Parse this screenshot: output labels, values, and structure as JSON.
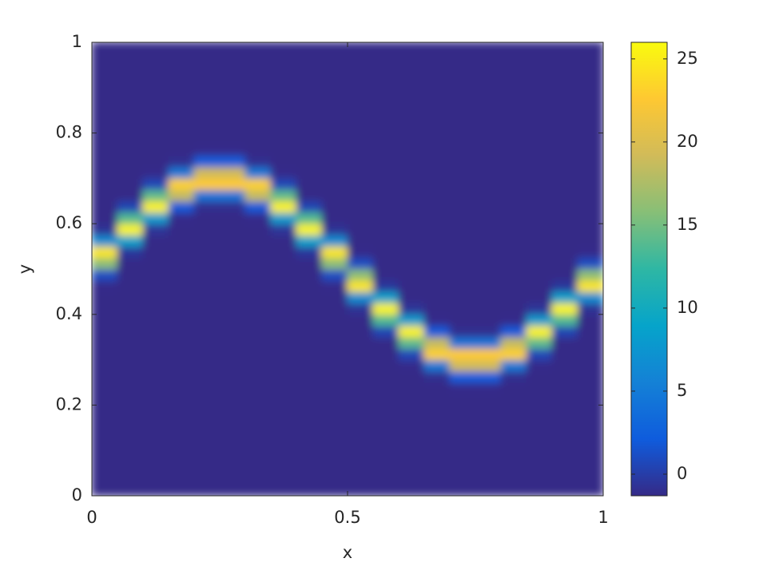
{
  "chart_data": {
    "type": "heatmap",
    "xlabel": "x",
    "ylabel": "y",
    "x": [
      0.025,
      0.075,
      0.125,
      0.175,
      0.225,
      0.275,
      0.325,
      0.375,
      0.425,
      0.475,
      0.525,
      0.575,
      0.625,
      0.675,
      0.725,
      0.775,
      0.825,
      0.875,
      0.925,
      0.975
    ],
    "y": [
      0.0125,
      0.0375,
      0.0625,
      0.0875,
      0.1125,
      0.1375,
      0.1625,
      0.1875,
      0.2125,
      0.2375,
      0.2625,
      0.2875,
      0.3125,
      0.3375,
      0.3625,
      0.3875,
      0.4125,
      0.4375,
      0.4625,
      0.4875,
      0.5125,
      0.5375,
      0.5625,
      0.5875,
      0.6125,
      0.6375,
      0.6625,
      0.6875,
      0.7125,
      0.7375,
      0.7625,
      0.7875,
      0.8125,
      0.8375,
      0.8625,
      0.8875,
      0.9125,
      0.9375,
      0.9625,
      0.9875
    ],
    "values": [
      [
        -1.3,
        -1.3,
        -1.3,
        -1.3,
        -1.3,
        -1.3,
        -1.3,
        -1.3,
        -1.3,
        -1.3,
        -1.3,
        -1.3,
        -1.3,
        -1.3,
        -1.3,
        -1.3,
        -1.3,
        -1.3,
        -1.3,
        -1.3
      ],
      [
        -1.3,
        -1.3,
        -1.3,
        -1.3,
        -1.3,
        -1.3,
        -1.3,
        -1.3,
        -1.3,
        -1.3,
        -1.3,
        -1.3,
        -1.3,
        -1.3,
        -1.3,
        -1.3,
        -1.3,
        -1.3,
        -1.3,
        -1.3
      ],
      [
        -1.3,
        -1.3,
        -1.3,
        -1.3,
        -1.3,
        -1.3,
        -1.3,
        -1.3,
        -1.3,
        -1.3,
        -1.3,
        -1.3,
        -1.3,
        -1.3,
        -1.3,
        -1.3,
        -1.3,
        -1.3,
        -1.3,
        -1.3
      ],
      [
        -1.3,
        -1.3,
        -1.3,
        -1.3,
        -1.3,
        -1.3,
        -1.3,
        -1.3,
        -1.3,
        -1.3,
        -1.3,
        -1.3,
        -1.3,
        -1.3,
        -1.3,
        -1.3,
        -1.3,
        -1.3,
        -1.3,
        -1.3
      ],
      [
        -1.3,
        -1.3,
        -1.3,
        -1.3,
        -1.3,
        -1.3,
        -1.3,
        -1.3,
        -1.3,
        -1.3,
        -1.3,
        -1.3,
        -1.3,
        -1.3,
        -1.3,
        -1.3,
        -1.3,
        -1.3,
        -1.3,
        -1.3
      ],
      [
        -1.3,
        -1.3,
        -1.3,
        -1.3,
        -1.3,
        -1.3,
        -1.3,
        -1.3,
        -1.3,
        -1.3,
        -1.3,
        -1.3,
        -1.3,
        -1.3,
        -1.3,
        -1.3,
        -1.3,
        -1.3,
        -1.3,
        -1.3
      ],
      [
        -1.3,
        -1.3,
        -1.3,
        -1.3,
        -1.3,
        -1.3,
        -1.3,
        -1.3,
        -1.3,
        -1.3,
        -1.3,
        -1.3,
        -1.3,
        -1.3,
        -1.3,
        -1.3,
        -1.3,
        -1.3,
        -1.3,
        -1.3
      ],
      [
        -1.3,
        -1.3,
        -1.3,
        -1.3,
        -1.3,
        -1.3,
        -1.3,
        -1.3,
        -1.3,
        -1.3,
        -1.3,
        -1.3,
        -1.3,
        -1.3,
        -1.3,
        -1.3,
        -1.3,
        -1.3,
        -1.3,
        -1.3
      ],
      [
        -1.3,
        -1.3,
        -1.3,
        -1.3,
        -1.3,
        -1.3,
        -1.3,
        -1.3,
        -1.3,
        -1.3,
        -1.3,
        -1.3,
        -1.3,
        -1.3,
        -1.3,
        -1.3,
        -1.3,
        -1.3,
        -1.3,
        -1.3
      ],
      [
        -1.3,
        -1.3,
        -1.3,
        -1.3,
        -1.3,
        -1.3,
        -1.3,
        -1.3,
        -1.3,
        -1.3,
        -1.3,
        -1.3,
        -1.3,
        -1.3,
        -1.2,
        -1.2,
        -1.3,
        -1.3,
        -1.3,
        -1.3
      ],
      [
        -1.3,
        -1.3,
        -1.3,
        -1.3,
        -1.3,
        -1.3,
        -1.3,
        -1.3,
        -1.3,
        -1.3,
        -1.3,
        -1.3,
        -1.3,
        -1.0,
        2.2,
        2.2,
        -1.0,
        -1.3,
        -1.3,
        -1.3
      ],
      [
        -1.3,
        -1.3,
        -1.3,
        -1.3,
        -1.3,
        -1.3,
        -1.3,
        -1.3,
        -1.3,
        -1.3,
        -1.3,
        -1.3,
        -1.2,
        4.8,
        19.2,
        19.2,
        4.8,
        -1.2,
        -1.3,
        -1.3
      ],
      [
        -1.3,
        -1.3,
        -1.3,
        -1.3,
        -1.3,
        -1.3,
        -1.3,
        -1.3,
        -1.3,
        -1.3,
        -1.3,
        -1.3,
        0.6,
        23.1,
        22.7,
        22.7,
        23.1,
        0.6,
        -1.3,
        -1.3
      ],
      [
        -1.3,
        -1.3,
        -1.3,
        -1.3,
        -1.3,
        -1.3,
        -1.3,
        -1.3,
        -1.3,
        -1.3,
        -1.3,
        -1.3,
        14.2,
        18.6,
        4.4,
        4.4,
        18.6,
        14.2,
        -1.3,
        -1.3
      ],
      [
        -1.3,
        -1.3,
        -1.3,
        -1.3,
        -1.3,
        -1.3,
        -1.3,
        -1.3,
        -1.3,
        -1.3,
        -1.3,
        0.5,
        25.4,
        2.0,
        -1.0,
        -1.0,
        2.0,
        25.4,
        0.5,
        -1.3
      ],
      [
        -1.3,
        -1.3,
        -1.3,
        -1.3,
        -1.3,
        -1.3,
        -1.3,
        -1.3,
        -1.3,
        -1.3,
        -1.3,
        13.7,
        8.2,
        -1.2,
        -1.3,
        -1.3,
        -1.2,
        8.2,
        13.7,
        -1.3
      ],
      [
        -1.3,
        -1.3,
        -1.3,
        -1.3,
        -1.3,
        -1.3,
        -1.3,
        -1.3,
        -1.3,
        -1.3,
        -0.8,
        25.5,
        -0.6,
        -1.3,
        -1.3,
        -1.3,
        -1.3,
        -0.6,
        25.5,
        -0.8
      ],
      [
        -1.3,
        -1.3,
        -1.3,
        -1.3,
        -1.3,
        -1.3,
        -1.3,
        -1.3,
        -1.3,
        -1.3,
        6.7,
        8.6,
        -1.3,
        -1.3,
        -1.3,
        -1.3,
        -1.3,
        -1.3,
        8.6,
        6.7
      ],
      [
        -1.2,
        -1.3,
        -1.3,
        -1.3,
        -1.3,
        -1.3,
        -1.3,
        -1.3,
        -1.3,
        -1.2,
        24.6,
        -0.5,
        -1.3,
        -1.3,
        -1.3,
        -1.3,
        -1.3,
        -1.3,
        -0.5,
        24.6
      ],
      [
        1.1,
        -1.3,
        -1.3,
        -1.3,
        -1.3,
        -1.3,
        -1.3,
        -1.3,
        -1.3,
        1.1,
        16.1,
        -1.3,
        -1.3,
        -1.3,
        -1.3,
        -1.3,
        -1.3,
        -1.3,
        -1.3,
        16.1
      ],
      [
        16.1,
        -1.3,
        -1.3,
        -1.3,
        -1.3,
        -1.3,
        -1.3,
        -1.3,
        -1.3,
        16.1,
        1.1,
        -1.3,
        -1.3,
        -1.3,
        -1.3,
        -1.3,
        -1.3,
        -1.3,
        -1.3,
        1.1
      ],
      [
        24.6,
        -0.5,
        -1.3,
        -1.3,
        -1.3,
        -1.3,
        -1.3,
        -1.3,
        -0.5,
        24.6,
        -1.2,
        -1.3,
        -1.3,
        -1.3,
        -1.3,
        -1.3,
        -1.3,
        -1.3,
        -1.3,
        -1.2
      ],
      [
        6.7,
        8.6,
        -1.3,
        -1.3,
        -1.3,
        -1.3,
        -1.3,
        -1.3,
        8.6,
        6.7,
        -1.3,
        -1.3,
        -1.3,
        -1.3,
        -1.3,
        -1.3,
        -1.3,
        -1.3,
        -1.3,
        -1.3
      ],
      [
        -0.8,
        25.5,
        -0.6,
        -1.3,
        -1.3,
        -1.3,
        -1.3,
        -0.6,
        25.5,
        -0.8,
        -1.3,
        -1.3,
        -1.3,
        -1.3,
        -1.3,
        -1.3,
        -1.3,
        -1.3,
        -1.3,
        -1.3
      ],
      [
        -1.3,
        13.7,
        8.2,
        -1.2,
        -1.3,
        -1.3,
        -1.2,
        8.2,
        13.7,
        -1.3,
        -1.3,
        -1.3,
        -1.3,
        -1.3,
        -1.3,
        -1.3,
        -1.3,
        -1.3,
        -1.3,
        -1.3
      ],
      [
        -1.3,
        0.5,
        25.4,
        2.0,
        -1.0,
        -1.0,
        2.0,
        25.4,
        0.5,
        -1.3,
        -1.3,
        -1.3,
        -1.3,
        -1.3,
        -1.3,
        -1.3,
        -1.3,
        -1.3,
        -1.3,
        -1.3
      ],
      [
        -1.3,
        -1.3,
        14.2,
        18.6,
        4.4,
        4.4,
        18.6,
        14.2,
        -1.3,
        -1.3,
        -1.3,
        -1.3,
        -1.3,
        -1.3,
        -1.3,
        -1.3,
        -1.3,
        -1.3,
        -1.3,
        -1.3
      ],
      [
        -1.3,
        -1.3,
        0.6,
        23.1,
        22.7,
        22.7,
        23.1,
        0.6,
        -1.3,
        -1.3,
        -1.3,
        -1.3,
        -1.3,
        -1.3,
        -1.3,
        -1.3,
        -1.3,
        -1.3,
        -1.3,
        -1.3
      ],
      [
        -1.3,
        -1.3,
        -1.2,
        4.8,
        19.2,
        19.2,
        4.8,
        -1.2,
        -1.3,
        -1.3,
        -1.3,
        -1.3,
        -1.3,
        -1.3,
        -1.3,
        -1.3,
        -1.3,
        -1.3,
        -1.3,
        -1.3
      ],
      [
        -1.3,
        -1.3,
        -1.3,
        -1.0,
        2.2,
        2.2,
        -1.0,
        -1.3,
        -1.3,
        -1.3,
        -1.3,
        -1.3,
        -1.3,
        -1.3,
        -1.3,
        -1.3,
        -1.3,
        -1.3,
        -1.3,
        -1.3
      ],
      [
        -1.3,
        -1.3,
        -1.3,
        -1.3,
        -1.2,
        -1.2,
        -1.3,
        -1.3,
        -1.3,
        -1.3,
        -1.3,
        -1.3,
        -1.3,
        -1.3,
        -1.3,
        -1.3,
        -1.3,
        -1.3,
        -1.3,
        -1.3
      ],
      [
        -1.3,
        -1.3,
        -1.3,
        -1.3,
        -1.3,
        -1.3,
        -1.3,
        -1.3,
        -1.3,
        -1.3,
        -1.3,
        -1.3,
        -1.3,
        -1.3,
        -1.3,
        -1.3,
        -1.3,
        -1.3,
        -1.3,
        -1.3
      ],
      [
        -1.3,
        -1.3,
        -1.3,
        -1.3,
        -1.3,
        -1.3,
        -1.3,
        -1.3,
        -1.3,
        -1.3,
        -1.3,
        -1.3,
        -1.3,
        -1.3,
        -1.3,
        -1.3,
        -1.3,
        -1.3,
        -1.3,
        -1.3
      ],
      [
        -1.3,
        -1.3,
        -1.3,
        -1.3,
        -1.3,
        -1.3,
        -1.3,
        -1.3,
        -1.3,
        -1.3,
        -1.3,
        -1.3,
        -1.3,
        -1.3,
        -1.3,
        -1.3,
        -1.3,
        -1.3,
        -1.3,
        -1.3
      ],
      [
        -1.3,
        -1.3,
        -1.3,
        -1.3,
        -1.3,
        -1.3,
        -1.3,
        -1.3,
        -1.3,
        -1.3,
        -1.3,
        -1.3,
        -1.3,
        -1.3,
        -1.3,
        -1.3,
        -1.3,
        -1.3,
        -1.3,
        -1.3
      ],
      [
        -1.3,
        -1.3,
        -1.3,
        -1.3,
        -1.3,
        -1.3,
        -1.3,
        -1.3,
        -1.3,
        -1.3,
        -1.3,
        -1.3,
        -1.3,
        -1.3,
        -1.3,
        -1.3,
        -1.3,
        -1.3,
        -1.3,
        -1.3
      ],
      [
        -1.3,
        -1.3,
        -1.3,
        -1.3,
        -1.3,
        -1.3,
        -1.3,
        -1.3,
        -1.3,
        -1.3,
        -1.3,
        -1.3,
        -1.3,
        -1.3,
        -1.3,
        -1.3,
        -1.3,
        -1.3,
        -1.3,
        -1.3
      ],
      [
        -1.3,
        -1.3,
        -1.3,
        -1.3,
        -1.3,
        -1.3,
        -1.3,
        -1.3,
        -1.3,
        -1.3,
        -1.3,
        -1.3,
        -1.3,
        -1.3,
        -1.3,
        -1.3,
        -1.3,
        -1.3,
        -1.3,
        -1.3
      ],
      [
        -1.3,
        -1.3,
        -1.3,
        -1.3,
        -1.3,
        -1.3,
        -1.3,
        -1.3,
        -1.3,
        -1.3,
        -1.3,
        -1.3,
        -1.3,
        -1.3,
        -1.3,
        -1.3,
        -1.3,
        -1.3,
        -1.3,
        -1.3
      ],
      [
        -1.3,
        -1.3,
        -1.3,
        -1.3,
        -1.3,
        -1.3,
        -1.3,
        -1.3,
        -1.3,
        -1.3,
        -1.3,
        -1.3,
        -1.3,
        -1.3,
        -1.3,
        -1.3,
        -1.3,
        -1.3,
        -1.3,
        -1.3
      ]
    ],
    "xlim": [
      0,
      1
    ],
    "xticks": [
      0,
      0.5,
      1
    ],
    "ylim": [
      0,
      1
    ],
    "yticks": [
      0,
      0.2,
      0.4,
      0.6,
      0.8,
      1
    ],
    "clim": [
      -1.3,
      26
    ],
    "cticks": [
      0,
      5,
      10,
      15,
      20,
      25
    ],
    "colormap": [
      "#352a87",
      "#0f5cdd",
      "#1481d6",
      "#06a4ca",
      "#2eb7a4",
      "#87bf77",
      "#d1bb59",
      "#fec832",
      "#f9fb0e"
    ]
  }
}
